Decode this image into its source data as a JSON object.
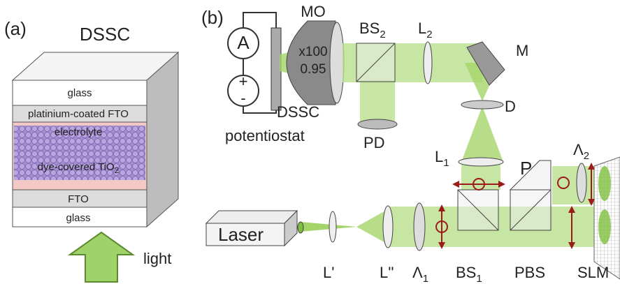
{
  "panel_a": {
    "label": "(a)",
    "title": "DSSC",
    "layers": {
      "glass_top": "glass",
      "pt_fto": "platinium-coated FTO",
      "electrolyte": "electrolyte",
      "tio2": {
        "text": "dye-covered TiO",
        "sub": "2"
      },
      "fto": "FTO",
      "glass_bottom": "glass"
    },
    "light": "light"
  },
  "panel_b": {
    "label": "(b)",
    "ammeter": "A",
    "plus": "+",
    "minus": "-",
    "objective": {
      "name": "MO",
      "magnification": "x100",
      "na": "0.95"
    },
    "dssc": "DSSC",
    "potentiostat": "potentiostat",
    "components": {
      "bs2": {
        "text": "BS",
        "sub": "2"
      },
      "l2": {
        "text": "L",
        "sub": "2"
      },
      "mirror": "M",
      "pinhole": "D",
      "pd": "PD",
      "l1": {
        "text": "L",
        "sub": "1"
      },
      "prism": "P",
      "lambda2": {
        "text": "Λ",
        "sub": "2"
      },
      "laser": "Laser",
      "l_prime": "L'",
      "l_dprime": "L''",
      "lambda1": {
        "text": "Λ",
        "sub": "1"
      },
      "bs1": {
        "text": "BS",
        "sub": "1"
      },
      "pbs": "PBS",
      "slm": "SLM"
    }
  }
}
